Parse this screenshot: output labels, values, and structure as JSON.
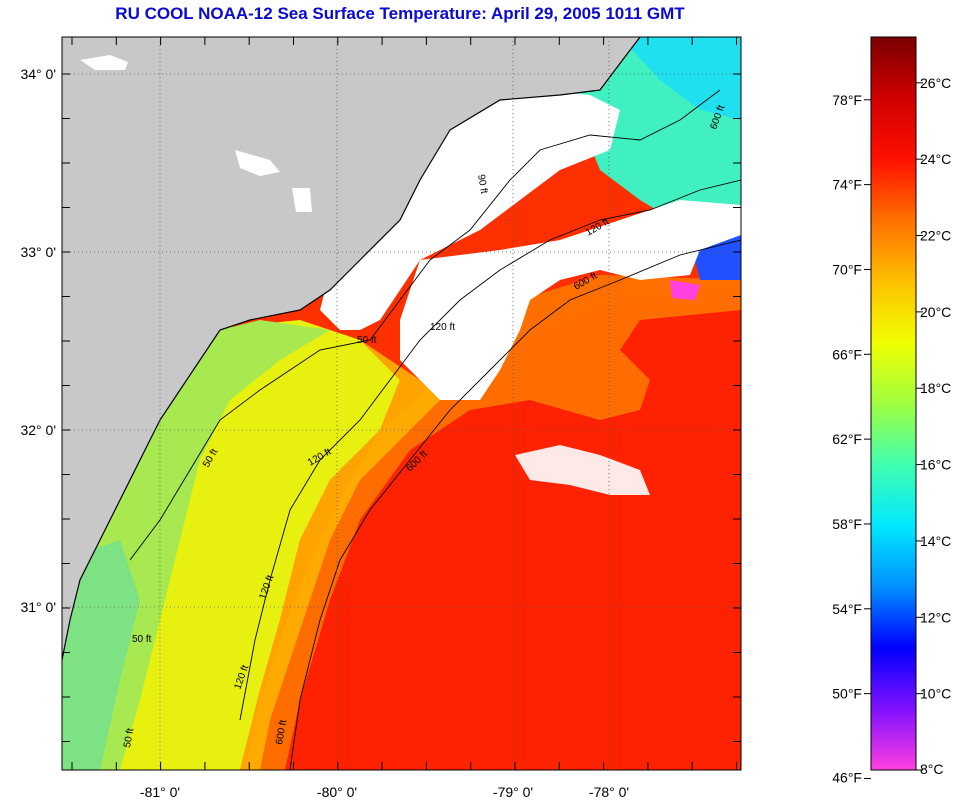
{
  "title": "RU COOL  NOAA-12  Sea Surface Temperature:  April 29, 2005 1011 GMT",
  "longitude_labels": [
    "-81° 0'",
    "-80° 0'",
    "-79° 0'",
    "-78° 0'"
  ],
  "latitude_labels": [
    "34° 0'",
    "33° 0'",
    "32° 0'",
    "31° 0'"
  ],
  "contour_labels": [
    "50 ft",
    "50 ft",
    "50 ft",
    "50 ft",
    "120 ft",
    "120 ft",
    "120 ft",
    "120 ft",
    "600 ft",
    "600 ft",
    "600 ft",
    "90 ft",
    "120 ft",
    "600 ft"
  ],
  "colorbar": {
    "fahrenheit_labels": [
      "78°F",
      "74°F",
      "70°F",
      "66°F",
      "62°F",
      "58°F",
      "54°F",
      "50°F",
      "46°F"
    ],
    "celsius_labels": [
      "26°C",
      "24°C",
      "22°C",
      "20°C",
      "18°C",
      "16°C",
      "14°C",
      "12°C",
      "10°C",
      "8°C"
    ],
    "celsius_min": 8,
    "celsius_max": 27.2,
    "colors": [
      "#ff40e0",
      "#8010ff",
      "#0000ff",
      "#0090ff",
      "#00e8ff",
      "#40ffb0",
      "#a0ff40",
      "#f0ff00",
      "#ffc000",
      "#ff7000",
      "#ff1000",
      "#d00000",
      "#7a0000"
    ]
  },
  "colors": {
    "land": "#c8c8c8",
    "cloud": "#ffffff",
    "shelf_yellow": "#e6f020",
    "nearshore_green": "#9ee860",
    "gulf_stream": "#ff2a00",
    "warm_orange": "#ffa000",
    "title_blue": "#0a0ad0"
  }
}
